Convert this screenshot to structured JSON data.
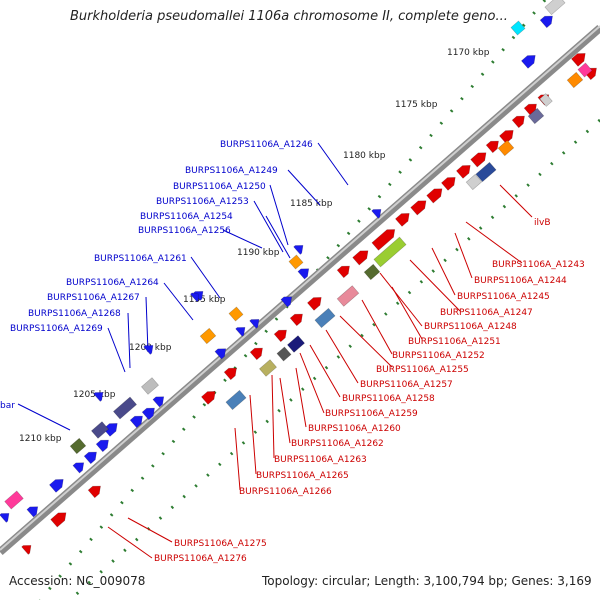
{
  "map": {
    "title": "Burkholderia pseudomallei 1106a chromosome II, complete geno...",
    "accession_label": "Accession: NC_009078",
    "summary_label": "Topology: circular; Length: 3,100,794 bp; Genes: 3,169"
  },
  "ticks": [
    "1170 kbp",
    "1175 kbp",
    "1180 kbp",
    "1185 kbp",
    "1190 kbp",
    "1195 kbp",
    "1200 kbp",
    "1205 kbp",
    "1210 kbp"
  ],
  "labels_forward": [
    "BURPS1106A_A1246",
    "BURPS1106A_A1249",
    "BURPS1106A_A1250",
    "BURPS1106A_A1253",
    "BURPS1106A_A1254",
    "BURPS1106A_A1256",
    "BURPS1106A_A1261",
    "BURPS1106A_A1264",
    "BURPS1106A_A1267",
    "BURPS1106A_A1268",
    "BURPS1106A_A1269",
    "bar"
  ],
  "labels_reverse": [
    "ilvB",
    "BURPS1106A_A1243",
    "BURPS1106A_A1244",
    "BURPS1106A_A1245",
    "BURPS1106A_A1247",
    "BURPS1106A_A1248",
    "BURPS1106A_A1251",
    "BURPS1106A_A1252",
    "BURPS1106A_A1255",
    "BURPS1106A_A1257",
    "BURPS1106A_A1258",
    "BURPS1106A_A1259",
    "BURPS1106A_A1260",
    "BURPS1106A_A1262",
    "BURPS1106A_A1263",
    "BURPS1106A_A1265",
    "BURPS1106A_A1266",
    "BURPS1106A_A1275",
    "BURPS1106A_A1276"
  ],
  "colors": {
    "backbone": "#8a8a8a",
    "forward_label": "#0000cc",
    "reverse_label": "#cc0000",
    "tick_dots": "#2e7d32"
  }
}
